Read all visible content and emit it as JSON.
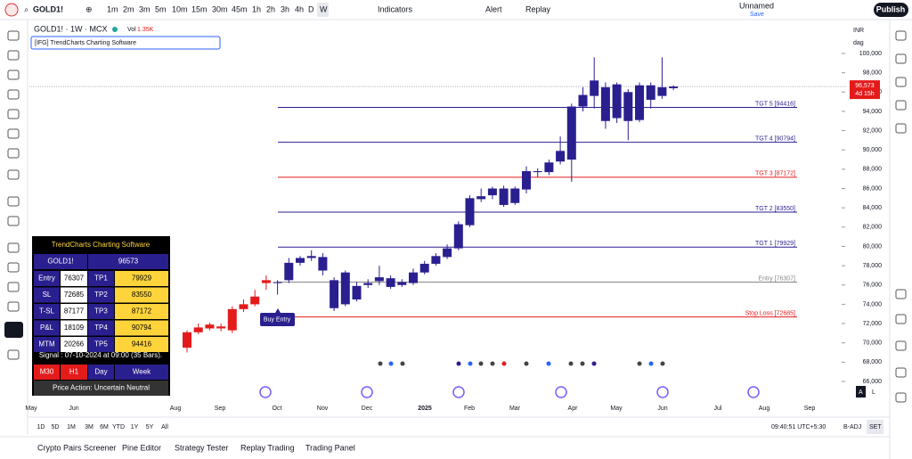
{
  "toolbar": {
    "symbol": "GOLD1!",
    "intervals": [
      "1m",
      "2m",
      "3m",
      "5m",
      "10m",
      "15m",
      "30m",
      "45m",
      "1h",
      "2h",
      "3h",
      "4h",
      "D",
      "W"
    ],
    "indicators": "Indicators",
    "alert": "Alert",
    "replay": "Replay",
    "layout_name": "Unnamed",
    "save": "Save",
    "publish": "Publish"
  },
  "legend": {
    "symbol": "GOLD1! · 1W · MCX",
    "vol_label": "Vol",
    "vol_value": "1.35K",
    "indicator": "[IFG] TrendCharts Charting Software"
  },
  "axis_settings": {
    "currency": "INR",
    "unit": "dag"
  },
  "chart": {
    "type": "candlestick",
    "open": [
      69500,
      71100,
      71500,
      71700,
      71300,
      73500,
      74000,
      76200,
      76300,
      76500,
      78300,
      78800,
      78900,
      76500,
      77300,
      74500,
      76000,
      76400,
      76700,
      76000,
      76200,
      77300,
      78200,
      78900,
      79800,
      82200,
      84900,
      85300,
      86000,
      84500,
      85900,
      87800,
      87700,
      88800,
      89000,
      94500,
      95600,
      96500,
      93300,
      96000,
      93100,
      96700,
      95600,
      96400
    ],
    "high": [
      71300,
      72000,
      72100,
      72000,
      73800,
      74500,
      75500,
      77000,
      76500,
      78800,
      79000,
      79600,
      79300,
      76800,
      77500,
      76300,
      76600,
      78000,
      77000,
      76600,
      77700,
      78500,
      79300,
      80200,
      82600,
      85300,
      86000,
      86200,
      86300,
      86200,
      88300,
      88100,
      89000,
      91400,
      94800,
      96500,
      99600,
      97000,
      97000,
      96300,
      97000,
      97000,
      99600,
      96700
    ],
    "low": [
      69000,
      70900,
      71300,
      71200,
      71000,
      73200,
      73800,
      75500,
      75000,
      76200,
      78000,
      78500,
      77000,
      73300,
      73800,
      74300,
      75700,
      76000,
      75600,
      75800,
      76000,
      77100,
      78000,
      78700,
      79600,
      82000,
      84600,
      84900,
      84100,
      84300,
      85500,
      87200,
      87400,
      88500,
      86700,
      94000,
      94300,
      92200,
      92800,
      91000,
      92900,
      94300,
      95300,
      96200
    ],
    "close": [
      71100,
      71600,
      71900,
      71500,
      73500,
      74000,
      74800,
      76500,
      76200,
      78300,
      78800,
      79000,
      77500,
      73600,
      74000,
      75900,
      76200,
      76800,
      75800,
      76300,
      77300,
      78200,
      79000,
      79800,
      82300,
      85000,
      85200,
      86000,
      84300,
      86000,
      87800,
      87700,
      88700,
      89900,
      94500,
      95700,
      97200,
      93000,
      96800,
      93000,
      96700,
      95200,
      96500,
      96573
    ],
    "colors": [
      "#e31b1b",
      "#e31b1b",
      "#e31b1b",
      "#e31b1b",
      "#e31b1b",
      "#e31b1b",
      "#e31b1b",
      "#e31b1b",
      "#2a1f8f",
      "#2a1f8f",
      "#2a1f8f",
      "#2a1f8f",
      "#2a1f8f",
      "#2a1f8f",
      "#2a1f8f",
      "#2a1f8f",
      "#2a1f8f",
      "#2a1f8f",
      "#2a1f8f",
      "#2a1f8f",
      "#2a1f8f",
      "#2a1f8f",
      "#2a1f8f",
      "#2a1f8f",
      "#2a1f8f",
      "#2a1f8f",
      "#2a1f8f",
      "#2a1f8f",
      "#2a1f8f",
      "#2a1f8f",
      "#2a1f8f",
      "#2a1f8f",
      "#2a1f8f",
      "#2a1f8f",
      "#2a1f8f",
      "#2a1f8f",
      "#2a1f8f",
      "#2a1f8f",
      "#2a1f8f",
      "#2a1f8f",
      "#2a1f8f",
      "#2a1f8f",
      "#2a1f8f",
      "#2a1f8f"
    ],
    "x_labels": [
      "May",
      "Jun",
      "Aug",
      "Sep",
      "Oct",
      "Nov",
      "Dec",
      "2025",
      "Feb",
      "Mar",
      "Apr",
      "May",
      "Jun",
      "Jul",
      "Aug",
      "Sep"
    ],
    "ylim": [
      65400,
      101000
    ],
    "yticks": [
      {
        "value": 100000,
        "label": "100,000"
      },
      {
        "value": 98000,
        "label": "98,000"
      },
      {
        "value": 96000,
        "label": "96,000"
      },
      {
        "value": 94000,
        "label": "94,000"
      },
      {
        "value": 92000,
        "label": "92,000"
      },
      {
        "value": 90000,
        "label": "90,000"
      },
      {
        "value": 88000,
        "label": "88,000"
      },
      {
        "value": 86000,
        "label": "86,000"
      },
      {
        "value": 84000,
        "label": "84,000"
      },
      {
        "value": 82000,
        "label": "82,000"
      },
      {
        "value": 80000,
        "label": "80,000"
      },
      {
        "value": 78000,
        "label": "78,000"
      },
      {
        "value": 76000,
        "label": "76,000"
      },
      {
        "value": 74000,
        "label": "74,000"
      },
      {
        "value": 72000,
        "label": "72,000"
      },
      {
        "value": 70000,
        "label": "70,000"
      },
      {
        "value": 68000,
        "label": "68,000"
      },
      {
        "value": 66000,
        "label": "66,000"
      }
    ],
    "levels": [
      {
        "label": "TGT 5 [94416]",
        "value": 94416,
        "color": "#2a1f8f"
      },
      {
        "label": "TGT 4 [90794]",
        "value": 90794,
        "color": "#2a1f8f"
      },
      {
        "label": "TGT 3 [87172]",
        "value": 87172,
        "color": "#e31b1b"
      },
      {
        "label": "TGT 2 [83550]",
        "value": 83550,
        "color": "#2a1f8f"
      },
      {
        "label": "TGT 1 [79929]",
        "value": 79929,
        "color": "#2a1f8f"
      },
      {
        "label": "Entry [76307]",
        "value": 76307,
        "color": "#888888"
      },
      {
        "label": "Stop Loss [72685]",
        "value": 72685,
        "color": "#e31b1b"
      }
    ],
    "last_price": {
      "value": 96573,
      "label": "96,573"
    },
    "countdown": "4d 15h",
    "buy_label": "Buy Entry"
  },
  "info_table": {
    "title": "TrendCharts Charting Software",
    "symbol": [
      "GOLD1!",
      96573
    ],
    "rows": [
      [
        "Entry",
        76307,
        "TP1",
        79929
      ],
      [
        "SL",
        72685,
        "TP2",
        83550
      ],
      [
        "T-SL",
        87177,
        "TP3",
        87172
      ],
      [
        "P&L",
        18109,
        "TP4",
        90794
      ],
      [
        "MTM",
        20266,
        "TP5",
        94416
      ]
    ],
    "signal": "Signal : 07-10-2024 at 09:00 (35 Bars).",
    "timeframes": [
      "M30",
      "H1",
      "Day",
      "Week"
    ],
    "price_action": "Price Action: Uncertain Neutral"
  },
  "bottom_bar": {
    "ranges": [
      "1D",
      "5D",
      "1M",
      "3M",
      "6M",
      "YTD",
      "1Y",
      "5Y",
      "All"
    ],
    "time": "09:40:51 UTC+5:30",
    "adj": "B-ADJ",
    "set": "SET",
    "scale_a": "A",
    "scale_l": "L"
  },
  "tabs": [
    "Crypto Pairs Screener",
    "Pine Editor",
    "Strategy Tester",
    "Replay Trading",
    "Trading Panel"
  ]
}
